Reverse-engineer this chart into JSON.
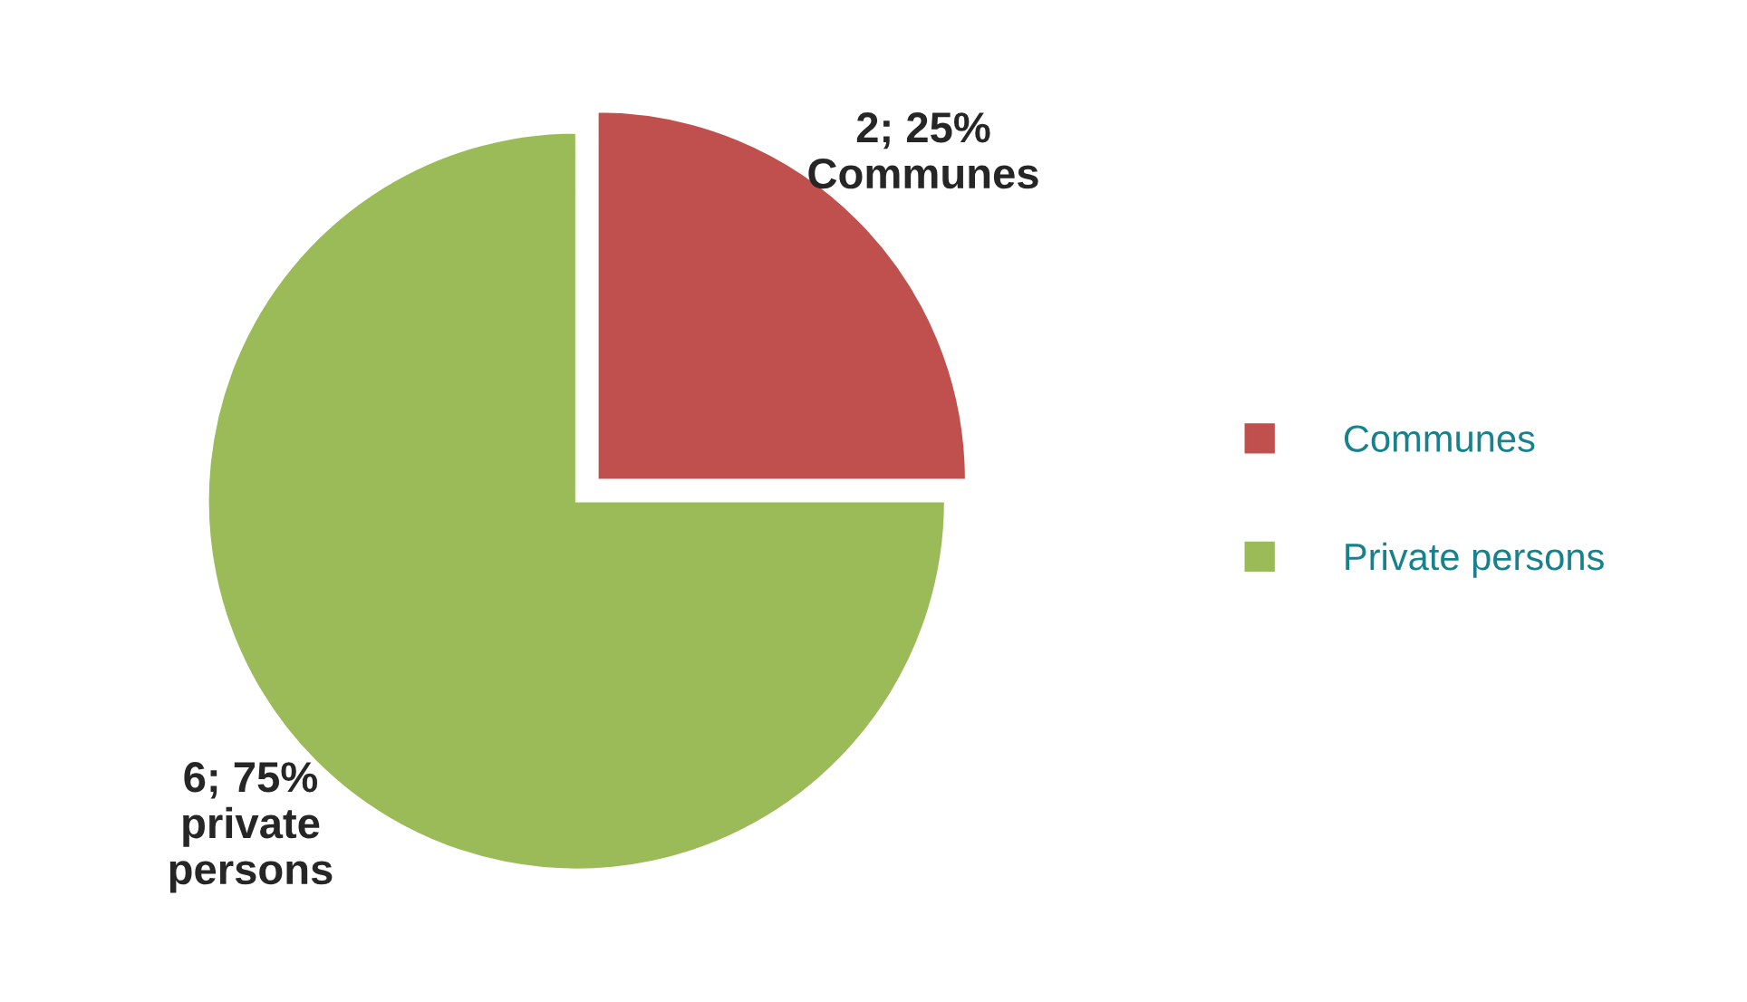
{
  "chart_data": {
    "type": "pie",
    "categories": [
      "Communes",
      "Private persons"
    ],
    "values": [
      2,
      6
    ],
    "colors": [
      "#c0504d",
      "#9bbb59"
    ],
    "value_labels": [
      "2; 25%\nCommunes",
      "6; 75%\nprivate\npersons"
    ],
    "legend": "right"
  }
}
